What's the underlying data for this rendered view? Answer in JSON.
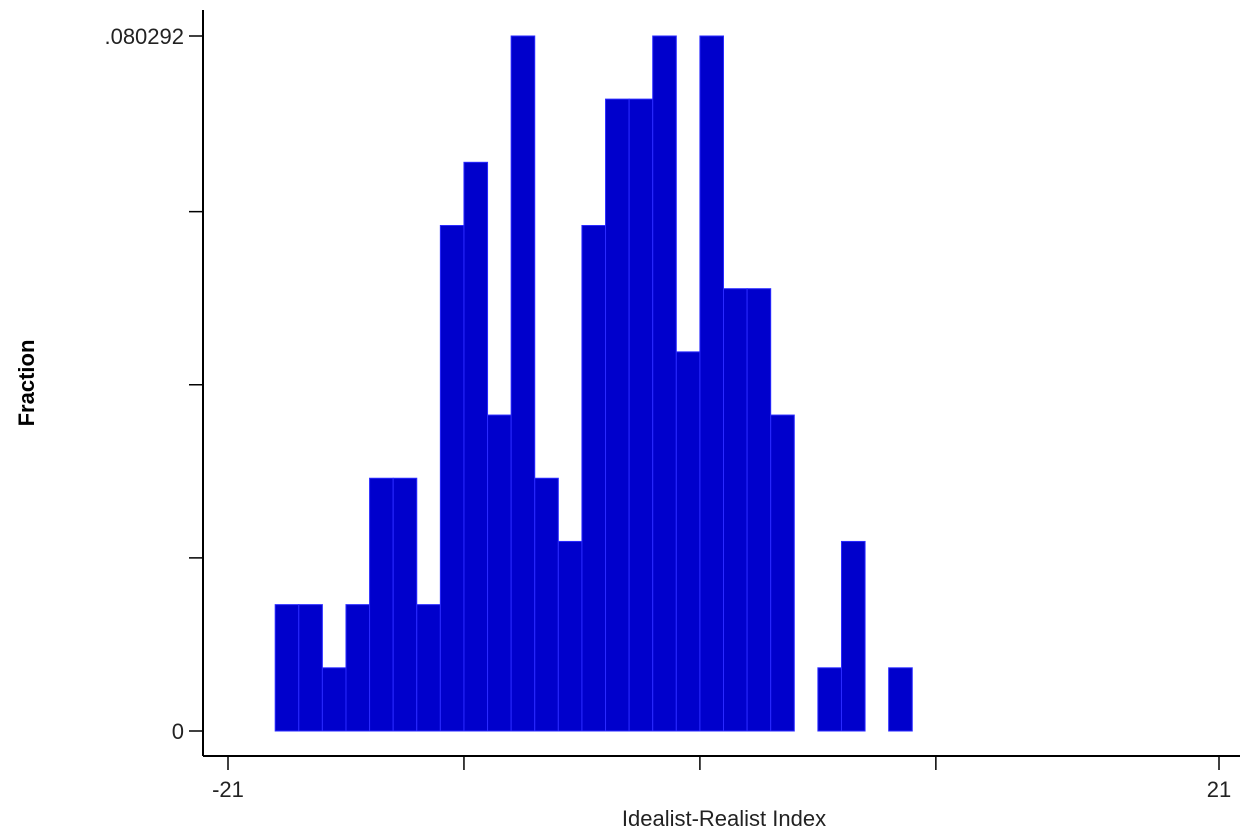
{
  "chart_data": {
    "type": "bar",
    "title": "",
    "xlabel": "Idealist-Realist Index",
    "ylabel": "Fraction",
    "xlim": [
      -21,
      21
    ],
    "ylim": [
      0,
      0.080292
    ],
    "x_tick_values": [
      -21,
      -11,
      -1,
      9,
      21
    ],
    "x_tick_labels": [
      "-21",
      "",
      "",
      "",
      "21"
    ],
    "y_tick_values": [
      0,
      0.02,
      0.04,
      0.06,
      0.080292
    ],
    "y_tick_labels": [
      "0",
      "",
      "",
      "",
      ".080292"
    ],
    "bin_width": 1,
    "grid": false,
    "bar_color": "#0000CC",
    "bar_edge_color": "#2A2AFF",
    "bins": [
      {
        "start": -19,
        "value": 0.0146
      },
      {
        "start": -18,
        "value": 0.0146
      },
      {
        "start": -17,
        "value": 0.0073
      },
      {
        "start": -16,
        "value": 0.0146
      },
      {
        "start": -15,
        "value": 0.0292
      },
      {
        "start": -14,
        "value": 0.0292
      },
      {
        "start": -13,
        "value": 0.0146
      },
      {
        "start": -12,
        "value": 0.0584
      },
      {
        "start": -11,
        "value": 0.0657
      },
      {
        "start": -10,
        "value": 0.0365
      },
      {
        "start": -9,
        "value": 0.080292
      },
      {
        "start": -8,
        "value": 0.0292
      },
      {
        "start": -7,
        "value": 0.0219
      },
      {
        "start": -6,
        "value": 0.0584
      },
      {
        "start": -5,
        "value": 0.073
      },
      {
        "start": -4,
        "value": 0.073
      },
      {
        "start": -3,
        "value": 0.080292
      },
      {
        "start": -2,
        "value": 0.0438
      },
      {
        "start": -1,
        "value": 0.080292
      },
      {
        "start": 0,
        "value": 0.0511
      },
      {
        "start": 1,
        "value": 0.0511
      },
      {
        "start": 2,
        "value": 0.0365
      },
      {
        "start": 4,
        "value": 0.0073
      },
      {
        "start": 5,
        "value": 0.0219
      },
      {
        "start": 7,
        "value": 0.0073
      }
    ]
  }
}
